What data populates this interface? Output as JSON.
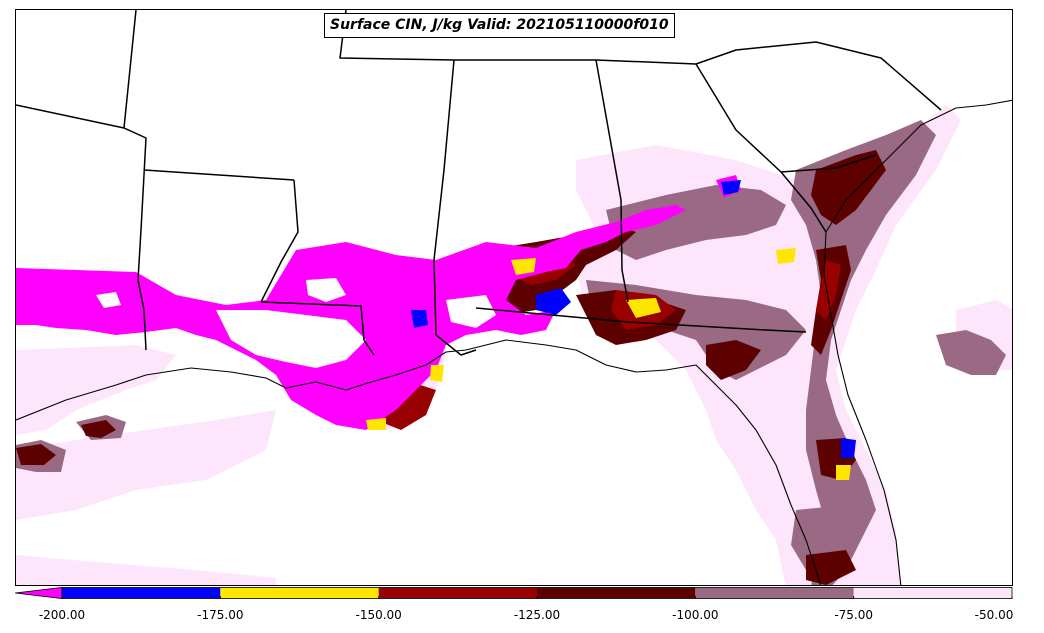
{
  "title": "Surface CIN, J/kg Valid: 202105110000f010",
  "colors": {
    "lt_-200": "#ff00ff",
    "-200_-175": "#0000ff",
    "-175_-150": "#ffe600",
    "-150_-125": "#990000",
    "-125_-100": "#5c0000",
    "-100_-75": "#9a6a84",
    "-75_-50": "#fde6fb",
    "state_lines": "#000000"
  },
  "colorbar": {
    "boundaries": [
      -200,
      -175,
      -150,
      -125,
      -100,
      -75,
      -50
    ],
    "tick_labels": [
      "-200.00",
      "-175.00",
      "-150.00",
      "-125.00",
      "-100.00",
      "-75.00",
      "-50.00"
    ],
    "extend": "min"
  }
}
